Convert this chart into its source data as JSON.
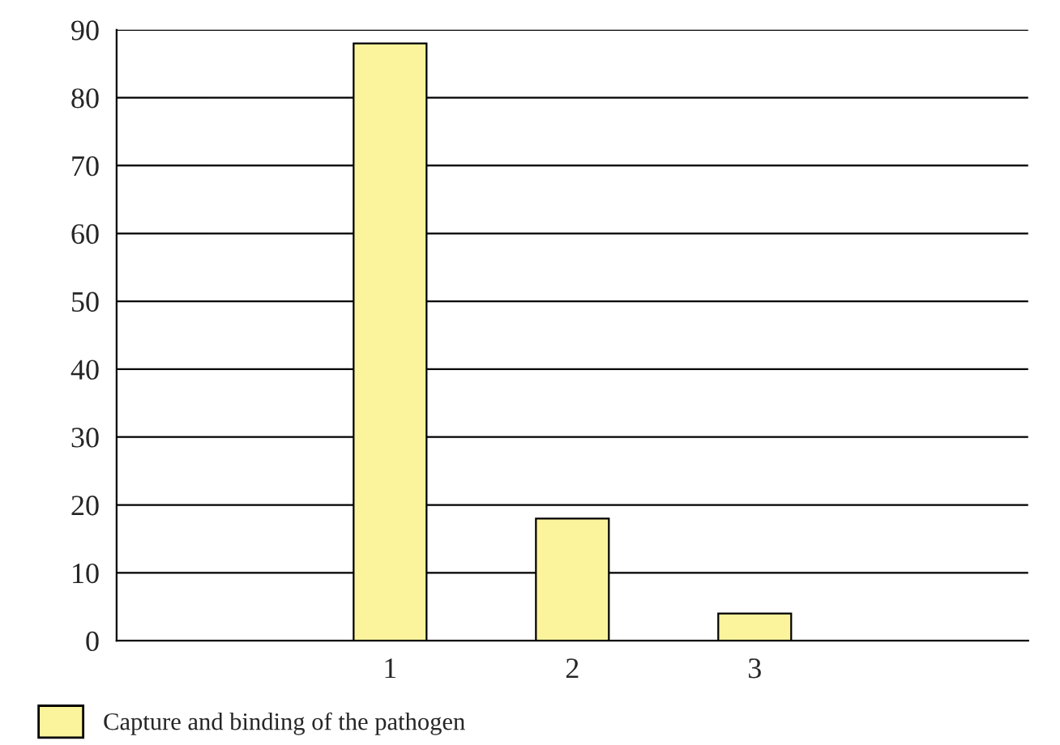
{
  "chart_data": {
    "type": "bar",
    "categories": [
      null,
      "1",
      "2",
      "3",
      null
    ],
    "series": [
      {
        "name": "Capture and binding of the pathogen",
        "color": "#fbf49c",
        "values": [
          null,
          88,
          18,
          4,
          null
        ]
      }
    ],
    "ylim": [
      0,
      90
    ],
    "yticks": [
      0,
      10,
      20,
      30,
      40,
      50,
      60,
      70,
      80,
      90
    ],
    "grid": "y",
    "legend": "bottom left"
  }
}
